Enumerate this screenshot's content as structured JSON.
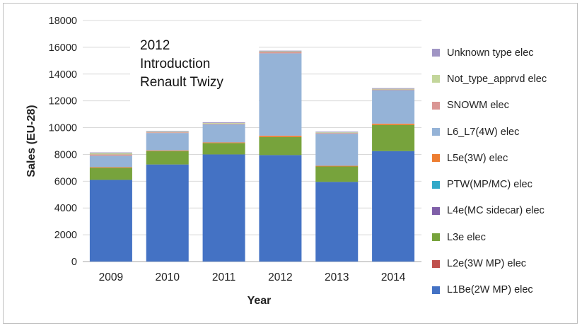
{
  "chart_data": {
    "type": "bar",
    "stacked": true,
    "xlabel": "Year",
    "ylabel": "Sales (EU-28)",
    "ylim": [
      0,
      18000
    ],
    "yticks": [
      "0",
      "2000",
      "4000",
      "6000",
      "8000",
      "10000",
      "12000",
      "14000",
      "16000",
      "18000"
    ],
    "categories": [
      "2009",
      "2010",
      "2011",
      "2012",
      "2013",
      "2014"
    ],
    "grid": true,
    "legend_position": "right",
    "series": [
      {
        "name": "L1Be(2W MP) elec",
        "color": "#4472c4",
        "values": [
          6100,
          7250,
          8000,
          7950,
          5950,
          8250
        ]
      },
      {
        "name": "L2e(3W MP) elec",
        "color": "#c0504d",
        "values": [
          0,
          0,
          0,
          0,
          0,
          0
        ]
      },
      {
        "name": "L3e elec",
        "color": "#77a33c",
        "values": [
          900,
          1000,
          850,
          1350,
          1150,
          1950
        ]
      },
      {
        "name": "L4e(MC sidecar) elec",
        "color": "#7f5fa8",
        "values": [
          0,
          0,
          0,
          0,
          0,
          0
        ]
      },
      {
        "name": "PTW(MP/MC) elec",
        "color": "#31a9c8",
        "values": [
          0,
          0,
          0,
          0,
          0,
          0
        ]
      },
      {
        "name": "L5e(3W) elec",
        "color": "#ed7d31",
        "values": [
          50,
          50,
          50,
          100,
          50,
          100
        ]
      },
      {
        "name": "L6_L7(4W) elec",
        "color": "#95b3d7",
        "values": [
          850,
          1300,
          1350,
          6150,
          2400,
          2500
        ]
      },
      {
        "name": "SNOWM elec",
        "color": "#da9694",
        "values": [
          100,
          50,
          50,
          100,
          50,
          50
        ]
      },
      {
        "name": "Not_type_apprvd elec",
        "color": "#c3d69b",
        "values": [
          100,
          50,
          50,
          50,
          50,
          50
        ]
      },
      {
        "name": "Unknown type elec",
        "color": "#a095c4",
        "values": [
          50,
          50,
          50,
          50,
          50,
          50
        ]
      }
    ],
    "annotation": {
      "lines": [
        "2012",
        "Introduction",
        "Renault Twizy"
      ]
    }
  }
}
